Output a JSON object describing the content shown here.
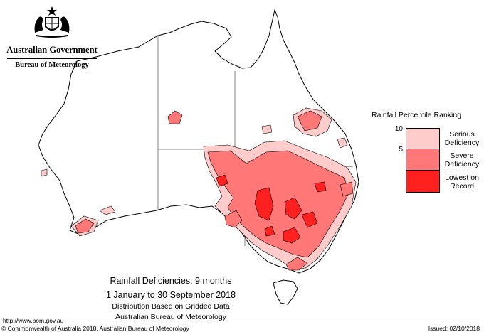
{
  "header": {
    "government_name": "Australian Government",
    "bureau_name": "Bureau of Meteorology",
    "crest_icon": "commonwealth-coat-of-arms-icon"
  },
  "legend": {
    "title": "Rainfall Percentile Ranking",
    "ticks": [
      "10",
      "5"
    ],
    "categories": [
      {
        "label_line1": "Serious",
        "label_line2": "Deficiency",
        "color": "#ffcccc"
      },
      {
        "label_line1": "Severe",
        "label_line2": "Deficiency",
        "color": "#ff7777"
      },
      {
        "label_line1": "Lowest on",
        "label_line2": "Record",
        "color": "#ff2020"
      }
    ]
  },
  "caption": {
    "title": "Rainfall Deficiencies: 9 months",
    "period": "1 January to 30 September 2018",
    "line1": "Distribution Based on Gridded Data",
    "line2": "Australian Bureau of Meteorology"
  },
  "footer": {
    "url": "http://www.bom.gov.au",
    "copyright": "© Commonwealth of Australia 2018, Australian Bureau of Meteorology",
    "issued": "Issued: 02/10/2018"
  },
  "colors": {
    "serious": "#ffcccc",
    "severe": "#ff7777",
    "lowest": "#ff2020",
    "outline": "#000000",
    "border_line": "#666666"
  }
}
